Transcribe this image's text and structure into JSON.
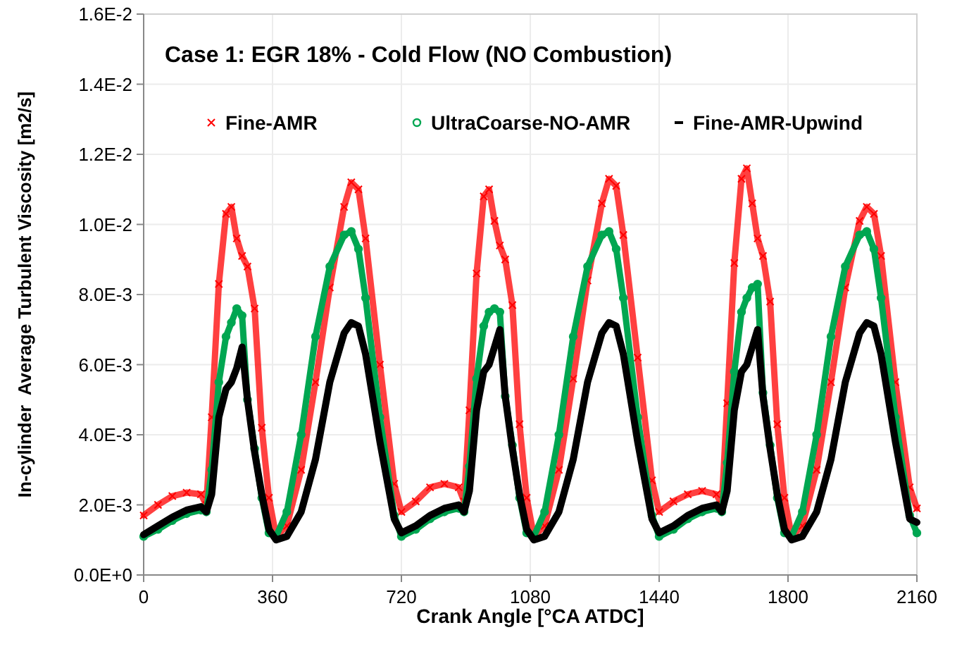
{
  "chart_data": {
    "type": "line",
    "title": "Case 1: EGR 18% - Cold Flow (NO Combustion)",
    "xlabel": "Crank Angle [°CA ATDC]",
    "ylabel": "In-cylinder  Average Turbulent Viscosity [m2/s]",
    "x": [
      0,
      40,
      80,
      120,
      160,
      175,
      190,
      210,
      230,
      245,
      260,
      275,
      290,
      310,
      330,
      350,
      370,
      400,
      440,
      480,
      520,
      560,
      580,
      600,
      620,
      660,
      700,
      720,
      760,
      800,
      840,
      880,
      895,
      910,
      930,
      950,
      965,
      980,
      995,
      1010,
      1030,
      1050,
      1070,
      1090,
      1120,
      1160,
      1200,
      1240,
      1280,
      1300,
      1320,
      1340,
      1380,
      1420,
      1440,
      1480,
      1520,
      1560,
      1600,
      1615,
      1630,
      1650,
      1670,
      1685,
      1700,
      1715,
      1730,
      1750,
      1770,
      1790,
      1810,
      1840,
      1880,
      1920,
      1960,
      2000,
      2020,
      2040,
      2060,
      2100,
      2140,
      2160
    ],
    "series": [
      {
        "name": "Fine-AMR",
        "color": "#ff0000",
        "marker": "cross",
        "values": [
          0.0017,
          0.002,
          0.00225,
          0.00235,
          0.0023,
          0.002,
          0.0045,
          0.0083,
          0.0103,
          0.0105,
          0.0096,
          0.0091,
          0.0088,
          0.0076,
          0.0042,
          0.0022,
          0.0011,
          0.0014,
          0.003,
          0.0055,
          0.0082,
          0.0105,
          0.0112,
          0.011,
          0.0096,
          0.006,
          0.0026,
          0.0018,
          0.0021,
          0.0025,
          0.0026,
          0.0025,
          0.0021,
          0.0047,
          0.0086,
          0.0108,
          0.011,
          0.0101,
          0.0094,
          0.009,
          0.0077,
          0.0043,
          0.0022,
          0.0011,
          0.0014,
          0.003,
          0.0056,
          0.0084,
          0.0106,
          0.0113,
          0.0111,
          0.0097,
          0.0062,
          0.0027,
          0.0018,
          0.0021,
          0.0023,
          0.0024,
          0.0023,
          0.002,
          0.0049,
          0.0089,
          0.0113,
          0.0116,
          0.0106,
          0.0096,
          0.0091,
          0.0078,
          0.0043,
          0.0022,
          0.0011,
          0.0014,
          0.003,
          0.0055,
          0.0082,
          0.0101,
          0.0105,
          0.0103,
          0.0091,
          0.0055,
          0.0025,
          0.0019
        ]
      },
      {
        "name": "UltraCoarse-NO-AMR",
        "color": "#00a651",
        "marker": "circle",
        "values": [
          0.0011,
          0.0013,
          0.00155,
          0.00175,
          0.00185,
          0.0018,
          0.003,
          0.0055,
          0.0068,
          0.0072,
          0.0076,
          0.0074,
          0.005,
          0.0036,
          0.0022,
          0.0012,
          0.0011,
          0.0018,
          0.004,
          0.0068,
          0.0088,
          0.0097,
          0.0098,
          0.0093,
          0.0079,
          0.0045,
          0.0017,
          0.0011,
          0.0013,
          0.0016,
          0.0018,
          0.0019,
          0.0018,
          0.0031,
          0.0056,
          0.0071,
          0.0075,
          0.0076,
          0.0075,
          0.0051,
          0.0037,
          0.0022,
          0.0012,
          0.0011,
          0.0018,
          0.004,
          0.0068,
          0.0088,
          0.0097,
          0.0098,
          0.0093,
          0.0079,
          0.0045,
          0.0017,
          0.0011,
          0.0013,
          0.0016,
          0.0018,
          0.0019,
          0.0018,
          0.0032,
          0.0058,
          0.0075,
          0.0079,
          0.0082,
          0.0083,
          0.0052,
          0.0037,
          0.0022,
          0.0012,
          0.0011,
          0.0018,
          0.004,
          0.0068,
          0.0088,
          0.0097,
          0.0098,
          0.0093,
          0.0079,
          0.0045,
          0.0017,
          0.0012
        ]
      },
      {
        "name": "Fine-AMR-Upwind",
        "color": "#000000",
        "marker": "none",
        "values": [
          0.00115,
          0.0014,
          0.00165,
          0.00185,
          0.00195,
          0.0018,
          0.0023,
          0.0045,
          0.0053,
          0.0055,
          0.0059,
          0.0065,
          0.005,
          0.0035,
          0.0023,
          0.0013,
          0.001,
          0.0011,
          0.0018,
          0.0033,
          0.0055,
          0.0069,
          0.0072,
          0.0071,
          0.0063,
          0.0038,
          0.0016,
          0.0012,
          0.0014,
          0.0017,
          0.0019,
          0.002,
          0.0018,
          0.0024,
          0.0047,
          0.0058,
          0.006,
          0.0065,
          0.007,
          0.0051,
          0.0036,
          0.0023,
          0.0013,
          0.001,
          0.0011,
          0.0018,
          0.0033,
          0.0055,
          0.0069,
          0.0072,
          0.0071,
          0.0063,
          0.0038,
          0.0016,
          0.0012,
          0.0014,
          0.0017,
          0.0019,
          0.002,
          0.0018,
          0.0024,
          0.0047,
          0.0058,
          0.006,
          0.0065,
          0.007,
          0.0051,
          0.0036,
          0.0023,
          0.0013,
          0.001,
          0.0011,
          0.0018,
          0.0033,
          0.0055,
          0.0069,
          0.0072,
          0.0071,
          0.0063,
          0.0038,
          0.0016,
          0.0015
        ]
      }
    ],
    "xlim": [
      0,
      2160
    ],
    "xticks": [
      0,
      360,
      720,
      1080,
      1440,
      1800,
      2160
    ],
    "ylim": [
      0,
      0.016
    ],
    "yticks": [
      {
        "value": 0,
        "label": "0.0E+0"
      },
      {
        "value": 0.002,
        "label": "2.0E-3"
      },
      {
        "value": 0.004,
        "label": "4.0E-3"
      },
      {
        "value": 0.006,
        "label": "6.0E-3"
      },
      {
        "value": 0.008,
        "label": "8.0E-3"
      },
      {
        "value": 0.01,
        "label": "1.0E-2"
      },
      {
        "value": 0.012,
        "label": "1.2E-2"
      },
      {
        "value": 0.014,
        "label": "1.4E-2"
      },
      {
        "value": 0.016,
        "label": "1.6E-2"
      }
    ],
    "grid": true,
    "legend": "top",
    "line_style": "solid"
  }
}
